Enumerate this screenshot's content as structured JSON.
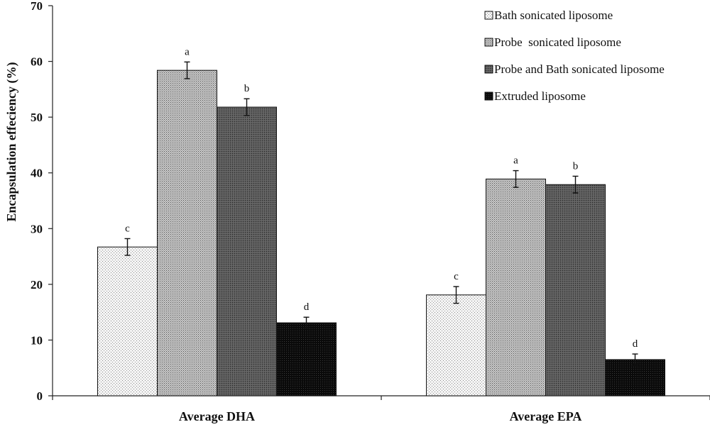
{
  "chart_data": {
    "type": "bar",
    "title": "",
    "xlabel": "",
    "ylabel": "Encapsulation effeciency (%)",
    "ylim": [
      0,
      70
    ],
    "yticks": [
      0,
      10,
      20,
      30,
      40,
      50,
      60,
      70
    ],
    "categories": [
      "Average DHA",
      "Average EPA"
    ],
    "legend_position": "top-right",
    "series": [
      {
        "name": "Bath sonicated liposome",
        "pattern": "light-dotted",
        "values": [
          26.7,
          18.1
        ],
        "errors": [
          1.5,
          1.5
        ],
        "sig_labels": [
          "c",
          "c"
        ]
      },
      {
        "name": "Probe  sonicated liposome",
        "pattern": "medium-dotted",
        "values": [
          58.4,
          38.9
        ],
        "errors": [
          1.5,
          1.5
        ],
        "sig_labels": [
          "a",
          "a"
        ]
      },
      {
        "name": "Probe and Bath sonicated liposome",
        "pattern": "dark-dotted",
        "values": [
          51.8,
          37.9
        ],
        "errors": [
          1.5,
          1.5
        ],
        "sig_labels": [
          "b",
          "b"
        ]
      },
      {
        "name": "Extruded liposome",
        "pattern": "black",
        "values": [
          13.1,
          6.5
        ],
        "errors": [
          1.0,
          1.0
        ],
        "sig_labels": [
          "d",
          "d"
        ]
      }
    ]
  }
}
